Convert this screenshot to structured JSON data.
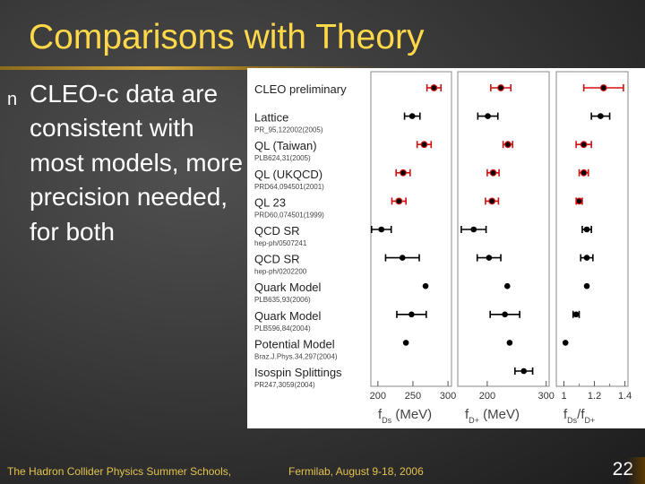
{
  "slide": {
    "title": "Comparisons with Theory",
    "bullet_marker": "n",
    "bullet_text": "CLEO-c data are consistent with most models, more precision needed, for both",
    "footer_left": "The Hadron Collider Physics Summer Schools,",
    "footer_right": "Fermilab, August 9-18, 2006",
    "page_number": "22"
  },
  "chart_data": {
    "type": "scatter",
    "rows": [
      {
        "label": "CLEO preliminary",
        "reference": "",
        "highlight": true
      },
      {
        "label": "Lattice",
        "reference": "PR_95,122002(2005)",
        "highlight": false
      },
      {
        "label": "QL (Taiwan)",
        "reference": "PLB624,31(2005)",
        "highlight": true
      },
      {
        "label": "QL (UKQCD)",
        "reference": "PRD64,094501(2001)",
        "highlight": true
      },
      {
        "label": "QL 23",
        "reference": "PRD60,074501(1999)",
        "highlight": true
      },
      {
        "label": "QCD SR",
        "reference": "hep-ph/0507241",
        "highlight": false
      },
      {
        "label": "QCD SR",
        "reference": "hep-ph/0202200",
        "highlight": false
      },
      {
        "label": "Quark Model",
        "reference": "PLB635,93(2006)",
        "highlight": false
      },
      {
        "label": "Quark Model",
        "reference": "PLB596,84(2004)",
        "highlight": false
      },
      {
        "label": "Potential Model",
        "reference": "Braz.J.Phys.34,297(2004)",
        "highlight": false
      },
      {
        "label": "Isospin Splittings",
        "reference": "PR247,3059(2004)",
        "highlight": false
      }
    ],
    "panels": [
      {
        "xlabel": "f",
        "xlabel_sub": "Ds",
        "xlabel_unit": " (MeV)",
        "xlim": [
          190,
          305
        ],
        "ticks": [
          200,
          250,
          300
        ],
        "tick_labels": [
          "200",
          "250",
          "300"
        ],
        "points": [
          {
            "row": 0,
            "value": 280,
            "err": 10
          },
          {
            "row": 1,
            "value": 249,
            "err": 11
          },
          {
            "row": 2,
            "value": 266,
            "err": 10
          },
          {
            "row": 3,
            "value": 236,
            "err": 10
          },
          {
            "row": 4,
            "value": 230,
            "err": 10
          },
          {
            "row": 5,
            "value": 205,
            "err": 14
          },
          {
            "row": 6,
            "value": 235,
            "err": 24
          },
          {
            "row": 7,
            "value": 268,
            "err": 0
          },
          {
            "row": 8,
            "value": 248,
            "err": 21
          },
          {
            "row": 9,
            "value": 240,
            "err": 0
          },
          {
            "row": 10,
            "value": null,
            "err": null
          }
        ]
      },
      {
        "xlabel": "f",
        "xlabel_sub": "D+",
        "xlabel_unit": " (MeV)",
        "xlim": [
          150,
          305
        ],
        "ticks": [
          200,
          300
        ],
        "tick_labels": [
          "200",
          "300"
        ],
        "points": [
          {
            "row": 0,
            "value": 223,
            "err": 17
          },
          {
            "row": 1,
            "value": 201,
            "err": 17
          },
          {
            "row": 2,
            "value": 235,
            "err": 8
          },
          {
            "row": 3,
            "value": 210,
            "err": 10
          },
          {
            "row": 4,
            "value": 208,
            "err": 11
          },
          {
            "row": 5,
            "value": 177,
            "err": 21
          },
          {
            "row": 6,
            "value": 203,
            "err": 20
          },
          {
            "row": 7,
            "value": 234,
            "err": 0
          },
          {
            "row": 8,
            "value": 230,
            "err": 25
          },
          {
            "row": 9,
            "value": 238,
            "err": 0
          },
          {
            "row": 10,
            "value": 262,
            "err": 15
          }
        ]
      },
      {
        "xlabel": "f",
        "xlabel_sub": "Ds",
        "xlabel_mid": "/f",
        "xlabel_sub2": "D+",
        "xlabel_unit": "",
        "xlim": [
          0.95,
          1.42
        ],
        "ticks": [
          1.0,
          1.2,
          1.4
        ],
        "tick_labels": [
          "1",
          "1.2",
          "1.4"
        ],
        "minor_ticks": [
          1.1,
          1.3
        ],
        "points": [
          {
            "row": 0,
            "value": 1.26,
            "err": 0.13
          },
          {
            "row": 1,
            "value": 1.24,
            "err": 0.06
          },
          {
            "row": 2,
            "value": 1.13,
            "err": 0.05
          },
          {
            "row": 3,
            "value": 1.13,
            "err": 0.03
          },
          {
            "row": 4,
            "value": 1.1,
            "err": 0.02
          },
          {
            "row": 5,
            "value": 1.15,
            "err": 0.03
          },
          {
            "row": 6,
            "value": 1.15,
            "err": 0.04
          },
          {
            "row": 7,
            "value": 1.15,
            "err": 0.0
          },
          {
            "row": 8,
            "value": 1.08,
            "err": 0.02
          },
          {
            "row": 9,
            "value": 1.01,
            "err": 0.0
          },
          {
            "row": 10,
            "value": null,
            "err": null
          }
        ]
      }
    ],
    "colors": {
      "highlight": "#d01010",
      "normal": "#000000",
      "panel_border": "#888888"
    }
  }
}
